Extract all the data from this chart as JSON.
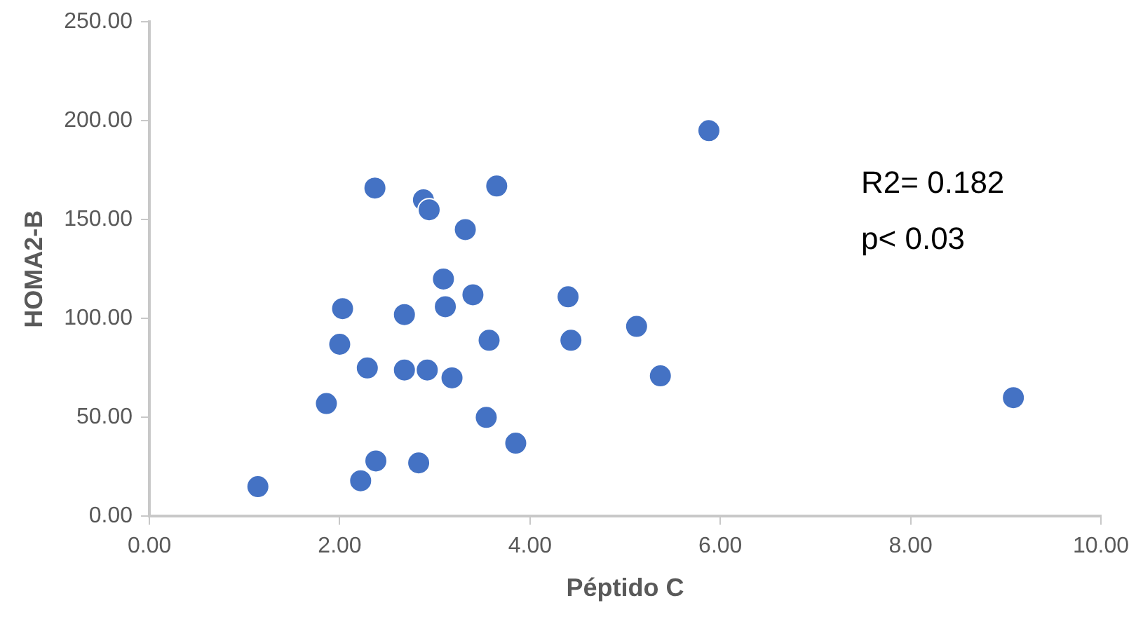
{
  "chart_data": {
    "type": "scatter",
    "xlabel": "Péptido C",
    "ylabel": "HOMA2-B",
    "annotations": [
      "R2= 0.182",
      "p< 0.03"
    ],
    "series": [
      {
        "color": "#4472c4",
        "x": [
          1.14,
          1.86,
          2.0,
          2.03,
          2.29,
          2.38,
          2.22,
          2.37,
          2.68,
          2.68,
          2.83,
          2.92,
          2.88,
          2.94,
          3.09,
          3.11,
          3.18,
          3.32,
          3.4,
          3.54,
          3.57,
          3.65,
          3.85,
          4.4,
          4.43,
          5.12,
          5.37,
          5.88,
          9.08
        ],
        "values": [
          15,
          57,
          87,
          105,
          75,
          28,
          18,
          166,
          102,
          74,
          27,
          74,
          160,
          155,
          120,
          106,
          70,
          145,
          112,
          50,
          89,
          167,
          37,
          111,
          89,
          96,
          71,
          195,
          60
        ]
      }
    ],
    "xlim": [
      0,
      10
    ],
    "ylim": [
      0,
      250
    ],
    "xticks": [
      {
        "value": 0,
        "label": "0.00"
      },
      {
        "value": 2,
        "label": "2.00"
      },
      {
        "value": 4,
        "label": "4.00"
      },
      {
        "value": 6,
        "label": "6.00"
      },
      {
        "value": 8,
        "label": "8.00"
      },
      {
        "value": 10,
        "label": "10.00"
      }
    ],
    "yticks": [
      {
        "value": 0,
        "label": "0.00"
      },
      {
        "value": 50,
        "label": "50.00"
      },
      {
        "value": 100,
        "label": "100.00"
      },
      {
        "value": 150,
        "label": "150.00"
      },
      {
        "value": 200,
        "label": "200.00"
      },
      {
        "value": 250,
        "label": "250.00"
      }
    ],
    "grid": false,
    "legend": false,
    "marker": "circle"
  }
}
